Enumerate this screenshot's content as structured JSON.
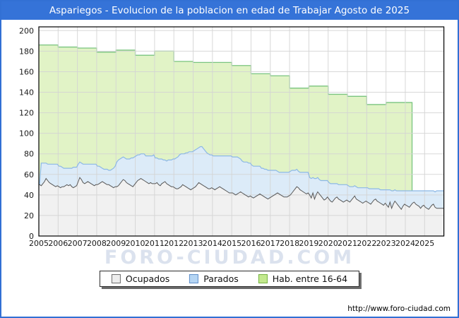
{
  "title": "Aspariegos - Evolucion de la poblacion en edad de Trabajar Agosto de 2025",
  "watermark": "FORO-CIUDAD.COM",
  "footer": {
    "url": "http://www.foro-ciudad.com"
  },
  "colors": {
    "frame_border": "#3270d4",
    "titlebar_bg": "#3573d8",
    "titlebar_text": "#ffffff",
    "grid": "#d4d4d4",
    "plot_border": "#000000",
    "ocupados_fill": "#f1f1f1",
    "ocupados_line": "#585858",
    "parados_fill": "#dcebf8",
    "parados_line": "#8cb8e6",
    "hab_fill": "#e1f3c6",
    "hab_line": "#79c47f",
    "axis_text": "#1a1a1a"
  },
  "legend": [
    {
      "label": "Ocupados",
      "swatch_fill": "#ededed",
      "swatch_border": "#6e6e6e"
    },
    {
      "label": "Parados",
      "swatch_fill": "#b5d5f3",
      "swatch_border": "#5f8fc9"
    },
    {
      "label": "Hab. entre 16-64",
      "swatch_fill": "#c3e98e",
      "swatch_border": "#76b243"
    }
  ],
  "chart_data": {
    "type": "area",
    "title": "Aspariegos - Evolucion de la poblacion en edad de Trabajar Agosto de 2025",
    "xlabel": "",
    "ylabel": "",
    "grid": true,
    "legend_position": "bottom",
    "x_range": {
      "start": "2005-01",
      "end": "2025-08"
    },
    "y_axis": {
      "min": 0,
      "max": 200,
      "step": 20
    },
    "x_tick_labels": [
      "2005",
      "2006",
      "2007",
      "2008",
      "2009",
      "2010",
      "2011",
      "2012",
      "2013",
      "2014",
      "2015",
      "2016",
      "2017",
      "2018",
      "2019",
      "2020",
      "2021",
      "2022",
      "2023",
      "2024",
      "2025"
    ],
    "series": [
      {
        "key": "hab",
        "name": "Hab. entre 16-64",
        "kind": "annual-step",
        "years": [
          2005,
          2006,
          2007,
          2008,
          2009,
          2010,
          2011,
          2012,
          2013,
          2014,
          2015,
          2016,
          2017,
          2018,
          2019,
          2020,
          2021,
          2022,
          2023
        ],
        "values": [
          186,
          184,
          183,
          179,
          181,
          176,
          180,
          170,
          169,
          169,
          166,
          158,
          156,
          144,
          146,
          138,
          136,
          128,
          130
        ],
        "end_t": 19.35,
        "note": "annual padron values; series drops to 0 around spring 2024"
      },
      {
        "key": "ocupados",
        "name": "Ocupados",
        "kind": "monthly",
        "values": [
          50,
          49,
          51,
          53,
          56,
          54,
          52,
          51,
          50,
          49,
          48,
          49,
          48,
          47,
          48,
          48,
          49,
          50,
          49,
          50,
          48,
          47,
          48,
          49,
          53,
          57,
          55,
          52,
          51,
          52,
          53,
          52,
          51,
          50,
          49,
          50,
          50,
          51,
          52,
          53,
          52,
          51,
          50,
          50,
          49,
          48,
          47,
          48,
          48,
          49,
          51,
          53,
          55,
          54,
          52,
          51,
          50,
          49,
          48,
          50,
          52,
          54,
          55,
          56,
          55,
          54,
          53,
          52,
          51,
          52,
          51,
          51,
          51,
          52,
          50,
          49,
          51,
          52,
          53,
          51,
          50,
          49,
          48,
          48,
          47,
          46,
          46,
          47,
          48,
          50,
          49,
          48,
          47,
          46,
          45,
          46,
          47,
          48,
          50,
          52,
          51,
          50,
          49,
          48,
          47,
          46,
          46,
          47,
          46,
          45,
          46,
          47,
          48,
          47,
          46,
          45,
          44,
          43,
          42,
          42,
          42,
          41,
          40,
          41,
          42,
          43,
          42,
          41,
          40,
          39,
          38,
          39,
          38,
          37,
          38,
          39,
          40,
          41,
          40,
          39,
          38,
          37,
          36,
          37,
          38,
          39,
          40,
          41,
          42,
          41,
          40,
          39,
          38,
          38,
          38,
          39,
          40,
          42,
          44,
          46,
          48,
          47,
          45,
          44,
          43,
          42,
          41,
          42,
          40,
          37,
          42,
          36,
          40,
          43,
          41,
          39,
          37,
          35,
          36,
          38,
          36,
          34,
          33,
          35,
          37,
          38,
          36,
          35,
          34,
          33,
          34,
          35,
          34,
          33,
          35,
          37,
          39,
          36,
          35,
          34,
          33,
          32,
          33,
          34,
          33,
          32,
          31,
          33,
          35,
          36,
          34,
          33,
          32,
          31,
          30,
          32,
          30,
          28,
          33,
          27,
          31,
          34,
          32,
          30,
          28,
          26,
          29,
          31,
          30,
          29,
          28,
          30,
          32,
          33,
          31,
          30,
          29,
          27,
          29,
          30,
          28,
          27,
          26,
          28,
          30,
          31,
          28,
          27
        ]
      },
      {
        "key": "parados",
        "name": "Parados",
        "kind": "monthly",
        "stacked_on": "ocupados",
        "values": [
          1,
          22,
          20,
          18,
          15,
          16,
          18,
          19,
          20,
          21,
          22,
          21,
          20,
          21,
          19,
          18,
          17,
          16,
          17,
          16,
          18,
          20,
          19,
          18,
          17,
          15,
          16,
          18,
          19,
          18,
          17,
          18,
          19,
          20,
          21,
          20,
          18,
          17,
          15,
          13,
          13,
          14,
          15,
          14,
          15,
          17,
          19,
          20,
          24,
          25,
          24,
          23,
          22,
          22,
          23,
          24,
          25,
          27,
          28,
          27,
          26,
          25,
          24,
          24,
          25,
          26,
          25,
          26,
          27,
          26,
          27,
          28,
          25,
          24,
          25,
          26,
          24,
          22,
          21,
          22,
          24,
          25,
          26,
          27,
          28,
          30,
          31,
          32,
          32,
          30,
          31,
          33,
          34,
          36,
          37,
          36,
          36,
          36,
          35,
          34,
          36,
          37,
          36,
          35,
          34,
          34,
          33,
          32,
          32,
          33,
          32,
          31,
          30,
          31,
          32,
          33,
          34,
          35,
          36,
          36,
          35,
          36,
          37,
          36,
          34,
          32,
          31,
          31,
          32,
          33,
          33,
          32,
          31,
          31,
          30,
          29,
          28,
          27,
          26,
          27,
          27,
          28,
          28,
          27,
          26,
          25,
          24,
          23,
          21,
          21,
          22,
          23,
          24,
          24,
          24,
          23,
          23,
          22,
          20,
          18,
          17,
          16,
          17,
          18,
          19,
          20,
          21,
          20,
          17,
          19,
          15,
          20,
          16,
          14,
          14,
          15,
          17,
          19,
          18,
          16,
          16,
          17,
          18,
          16,
          14,
          13,
          14,
          15,
          16,
          17,
          16,
          15,
          15,
          15,
          13,
          11,
          10,
          12,
          12,
          13,
          14,
          15,
          14,
          13,
          14,
          14,
          15,
          13,
          11,
          10,
          12,
          13,
          13,
          14,
          15,
          13,
          15,
          17,
          12,
          17,
          13,
          11,
          12,
          14,
          16,
          18,
          15,
          13,
          14,
          15,
          16,
          14,
          12,
          11,
          13,
          14,
          15,
          17,
          15,
          14,
          16,
          17,
          18,
          16,
          14,
          13,
          15,
          17
        ]
      }
    ]
  }
}
